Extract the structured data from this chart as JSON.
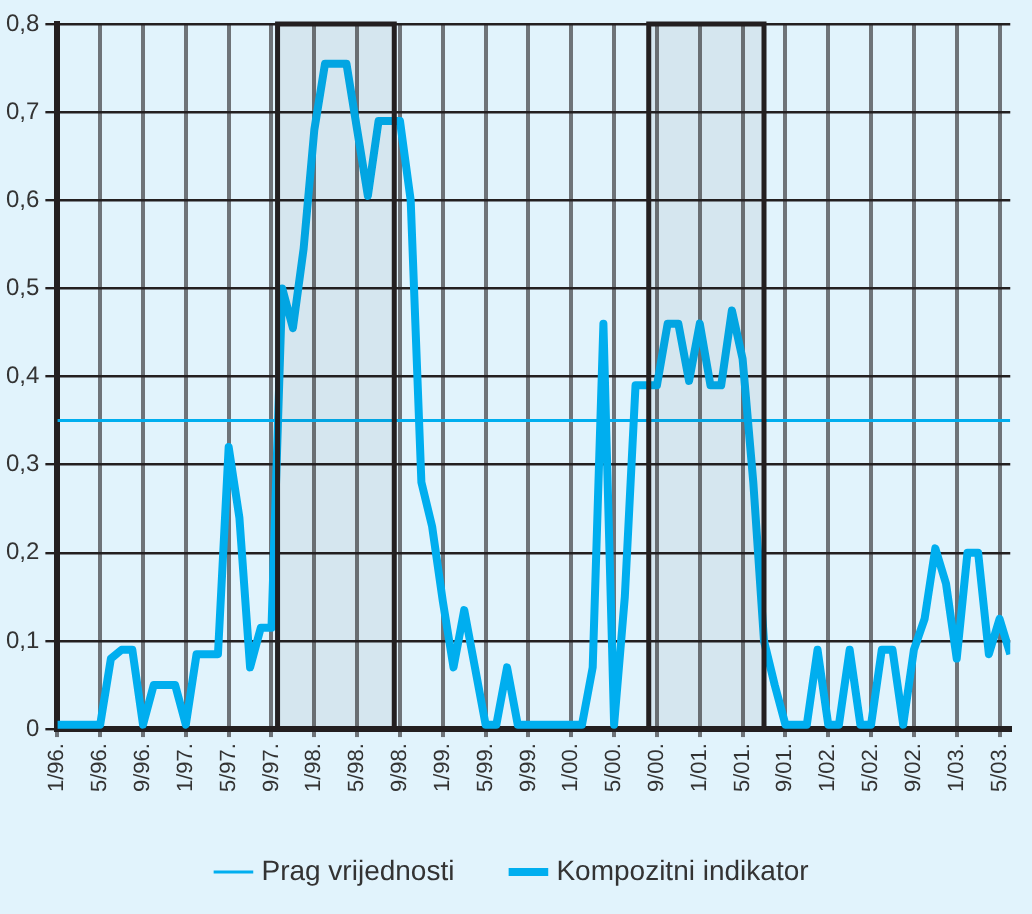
{
  "chart_data": {
    "type": "line",
    "x": [
      "1996-01",
      "1996-02",
      "1996-03",
      "1996-04",
      "1996-05",
      "1996-06",
      "1996-07",
      "1996-08",
      "1996-09",
      "1996-10",
      "1996-11",
      "1996-12",
      "1997-01",
      "1997-02",
      "1997-03",
      "1997-04",
      "1997-05",
      "1997-06",
      "1997-07",
      "1997-08",
      "1997-09",
      "1997-10",
      "1997-11",
      "1997-12",
      "1998-01",
      "1998-02",
      "1998-03",
      "1998-04",
      "1998-05",
      "1998-06",
      "1998-07",
      "1998-08",
      "1998-09",
      "1998-10",
      "1998-11",
      "1998-12",
      "1999-01",
      "1999-02",
      "1999-03",
      "1999-04",
      "1999-05",
      "1999-06",
      "1999-07",
      "1999-08",
      "1999-09",
      "1999-10",
      "1999-11",
      "1999-12",
      "2000-01",
      "2000-02",
      "2000-03",
      "2000-04",
      "2000-05",
      "2000-06",
      "2000-07",
      "2000-08",
      "2000-09",
      "2000-10",
      "2000-11",
      "2000-12",
      "2001-01",
      "2001-02",
      "2001-03",
      "2001-04",
      "2001-05",
      "2001-06",
      "2001-07",
      "2001-08",
      "2001-09",
      "2001-10",
      "2001-11",
      "2001-12",
      "2002-01",
      "2002-02",
      "2002-03",
      "2002-04",
      "2002-05",
      "2002-06",
      "2002-07",
      "2002-08",
      "2002-09",
      "2002-10",
      "2002-11",
      "2002-12",
      "2003-01",
      "2003-02",
      "2003-03",
      "2003-04",
      "2003-05",
      "2003-06"
    ],
    "series": [
      {
        "name": "Prag vrijednosti",
        "color": "#00aeef",
        "x": [
          "1996-01",
          "2003-06"
        ],
        "values": [
          0.35,
          0.35
        ]
      },
      {
        "name": "Kompozitni indikator",
        "color": "#00aeef",
        "values": [
          0.005,
          0.005,
          0.005,
          0.005,
          0.005,
          0.08,
          0.09,
          0.09,
          0.005,
          0.05,
          0.05,
          0.05,
          0.005,
          0.085,
          0.085,
          0.085,
          0.32,
          0.24,
          0.07,
          0.115,
          0.115,
          0.5,
          0.455,
          0.545,
          0.68,
          0.755,
          0.755,
          0.755,
          0.68,
          0.605,
          0.69,
          0.69,
          0.69,
          0.6,
          0.28,
          0.23,
          0.145,
          0.07,
          0.135,
          0.07,
          0.005,
          0.005,
          0.07,
          0.005,
          0.005,
          0.005,
          0.005,
          0.005,
          0.005,
          0.005,
          0.07,
          0.46,
          0.005,
          0.15,
          0.39,
          0.39,
          0.39,
          0.46,
          0.46,
          0.395,
          0.46,
          0.39,
          0.39,
          0.475,
          0.42,
          0.28,
          0.1,
          0.05,
          0.005,
          0.005,
          0.005,
          0.09,
          0.005,
          0.005,
          0.09,
          0.005,
          0.005,
          0.09,
          0.09,
          0.005,
          0.09,
          0.125,
          0.205,
          0.165,
          0.08,
          0.2,
          0.2,
          0.085,
          0.125,
          0.085
        ]
      }
    ],
    "xlim": [
      "1996-01",
      "2003-06"
    ],
    "xticks": [
      {
        "value": "1996-01",
        "label": "1/96."
      },
      {
        "value": "1996-05",
        "label": "5/96."
      },
      {
        "value": "1996-09",
        "label": "9/96."
      },
      {
        "value": "1997-01",
        "label": "1/97."
      },
      {
        "value": "1997-05",
        "label": "5/97."
      },
      {
        "value": "1997-09",
        "label": "9/97."
      },
      {
        "value": "1998-01",
        "label": "1/98."
      },
      {
        "value": "1998-05",
        "label": "5/98."
      },
      {
        "value": "1998-09",
        "label": "9/98."
      },
      {
        "value": "1999-01",
        "label": "1/99."
      },
      {
        "value": "1999-05",
        "label": "5/99."
      },
      {
        "value": "1999-09",
        "label": "9/99."
      },
      {
        "value": "2000-01",
        "label": "1/00."
      },
      {
        "value": "2000-05",
        "label": "5/00."
      },
      {
        "value": "2000-09",
        "label": "9/00."
      },
      {
        "value": "2001-01",
        "label": "1/01."
      },
      {
        "value": "2001-05",
        "label": "5/01."
      },
      {
        "value": "2001-09",
        "label": "9/01."
      },
      {
        "value": "2002-01",
        "label": "1/02."
      },
      {
        "value": "2002-05",
        "label": "5/02."
      },
      {
        "value": "2002-09",
        "label": "9/02."
      },
      {
        "value": "2003-01",
        "label": "1/03."
      },
      {
        "value": "2003-05",
        "label": "5/03."
      }
    ],
    "ylim": [
      0,
      0.8
    ],
    "yticks": [
      0,
      {
        "value": 0.1,
        "label": "0,1"
      },
      {
        "value": 0.2,
        "label": "0,2"
      },
      {
        "value": 0.3,
        "label": "0,3"
      },
      {
        "value": 0.4,
        "label": "0,4"
      },
      {
        "value": 0.5,
        "label": "0,5"
      },
      {
        "value": 0.6,
        "label": "0,6"
      },
      {
        "value": 0.7,
        "label": "0,7"
      },
      {
        "value": 0.8,
        "label": "0,8"
      }
    ],
    "bands": [
      {
        "axis": "x",
        "from": "1997-09-18",
        "to": "1998-08-15",
        "color": "#231f20"
      },
      {
        "axis": "x",
        "from": "2000-08-08",
        "to": "2001-07-01",
        "color": "#231f20"
      }
    ],
    "grid": true,
    "legend": "bottom",
    "marker": "none",
    "line_style": "solid"
  }
}
